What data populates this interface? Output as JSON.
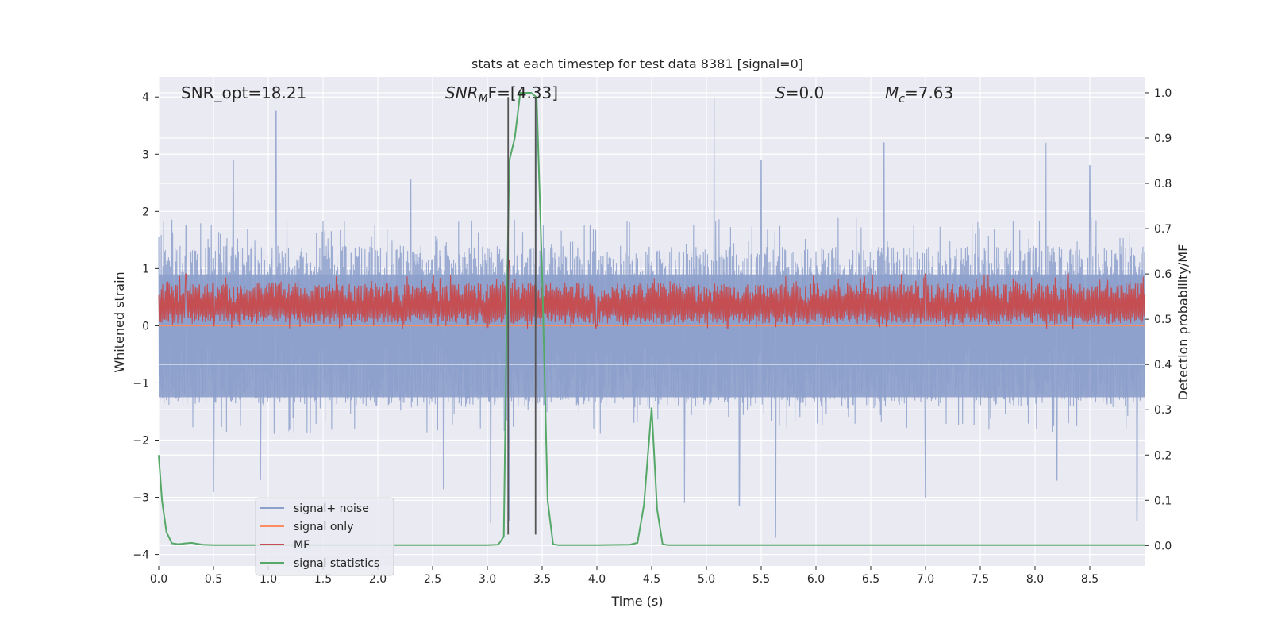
{
  "chart_data": {
    "type": "line",
    "title": "stats at each timestep for test data 8381 [signal=0]",
    "xlabel": "Time (s)",
    "ylabel_left": "Whitened strain",
    "ylabel_right": "Detection probability/MF",
    "xlim": [
      0.0,
      9.0
    ],
    "ylim_left": [
      -4.2,
      4.35
    ],
    "ylim_right": [
      -0.045,
      1.035
    ],
    "x_ticks": [
      "0.0",
      "0.5",
      "1.0",
      "1.5",
      "2.0",
      "2.5",
      "3.0",
      "3.5",
      "4.0",
      "4.5",
      "5.0",
      "5.5",
      "6.0",
      "6.5",
      "7.0",
      "7.5",
      "8.0",
      "8.5"
    ],
    "y_ticks_left": [
      "4",
      "3",
      "2",
      "1",
      "0",
      "−1",
      "−2",
      "−3",
      "−4"
    ],
    "y_ticks_right": [
      "1.0",
      "0.9",
      "0.8",
      "0.7",
      "0.6",
      "0.5",
      "0.4",
      "0.3",
      "0.2",
      "0.1",
      "0.0"
    ],
    "grid": true,
    "legend_position": "lower-left",
    "annotations": {
      "snr_opt": "SNR_opt=18.21",
      "snr_mf_base": "SNR",
      "snr_mf_sub": "M",
      "snr_mf_rest": "F=[4.33]",
      "s_base": "S",
      "s_rest": "=0.0",
      "mc_base": "M",
      "mc_sub": "c",
      "mc_rest": "=7.63"
    },
    "series": [
      {
        "name": "signal+ noise",
        "axis": "left",
        "color": "#8da0cb",
        "kind": "noise",
        "center": 0.0,
        "typical_min": -1.4,
        "typical_max": 1.4,
        "peaks_max": [
          [
            0.0,
            1.55
          ],
          [
            0.25,
            1.75
          ],
          [
            0.68,
            2.9
          ],
          [
            1.07,
            3.75
          ],
          [
            2.3,
            2.55
          ],
          [
            3.45,
            3.85
          ],
          [
            5.07,
            4.0
          ],
          [
            5.5,
            2.9
          ],
          [
            6.62,
            3.2
          ],
          [
            8.1,
            3.2
          ],
          [
            8.5,
            2.8
          ]
        ],
        "peaks_min": [
          [
            0.5,
            -2.9
          ],
          [
            0.93,
            -2.7
          ],
          [
            2.6,
            -2.85
          ],
          [
            3.03,
            -3.45
          ],
          [
            3.2,
            -3.4
          ],
          [
            4.8,
            -3.1
          ],
          [
            5.3,
            -3.15
          ],
          [
            5.63,
            -3.7
          ],
          [
            7.0,
            -3.0
          ],
          [
            8.2,
            -2.7
          ],
          [
            8.93,
            -3.4
          ]
        ]
      },
      {
        "name": "signal only",
        "axis": "left",
        "color": "#fc8d62",
        "kind": "constant",
        "value": 0.0
      },
      {
        "name": "MF",
        "axis": "right",
        "color": "#c44e52",
        "kind": "noise",
        "center": 0.525,
        "typical_min": 0.49,
        "typical_max": 0.58,
        "peaks_max": [
          [
            0.25,
            0.6
          ],
          [
            3.2,
            0.63
          ],
          [
            6.78,
            0.6
          ],
          [
            7.0,
            0.6
          ],
          [
            8.3,
            0.6
          ]
        ],
        "peaks_min": [
          [
            0.5,
            0.485
          ],
          [
            4.0,
            0.485
          ]
        ]
      },
      {
        "name": "signal statistics",
        "axis": "right",
        "color": "#55a868",
        "kind": "line",
        "x": [
          0.0,
          0.03,
          0.07,
          0.12,
          0.18,
          0.25,
          0.3,
          0.35,
          0.4,
          0.5,
          1.0,
          2.0,
          3.0,
          3.1,
          3.15,
          3.18,
          3.2,
          3.25,
          3.3,
          3.4,
          3.45,
          3.5,
          3.55,
          3.6,
          3.65,
          4.0,
          4.3,
          4.37,
          4.43,
          4.5,
          4.55,
          4.6,
          4.65,
          5.0,
          6.0,
          7.0,
          8.0,
          9.0
        ],
        "y": [
          0.2,
          0.1,
          0.03,
          0.005,
          0.003,
          0.005,
          0.006,
          0.004,
          0.002,
          0.001,
          0.001,
          0.001,
          0.001,
          0.002,
          0.02,
          0.55,
          0.85,
          0.9,
          1.0,
          1.0,
          0.99,
          0.6,
          0.1,
          0.003,
          0.001,
          0.001,
          0.002,
          0.006,
          0.09,
          0.305,
          0.08,
          0.003,
          0.001,
          0.001,
          0.001,
          0.001,
          0.001,
          0.001
        ]
      }
    ],
    "vertical_lines": [
      {
        "x": 3.19,
        "ymin": -3.65,
        "ymax": 4.0,
        "color": "#555555"
      },
      {
        "x": 3.44,
        "ymin": -3.65,
        "ymax": 4.0,
        "color": "#555555"
      }
    ]
  }
}
